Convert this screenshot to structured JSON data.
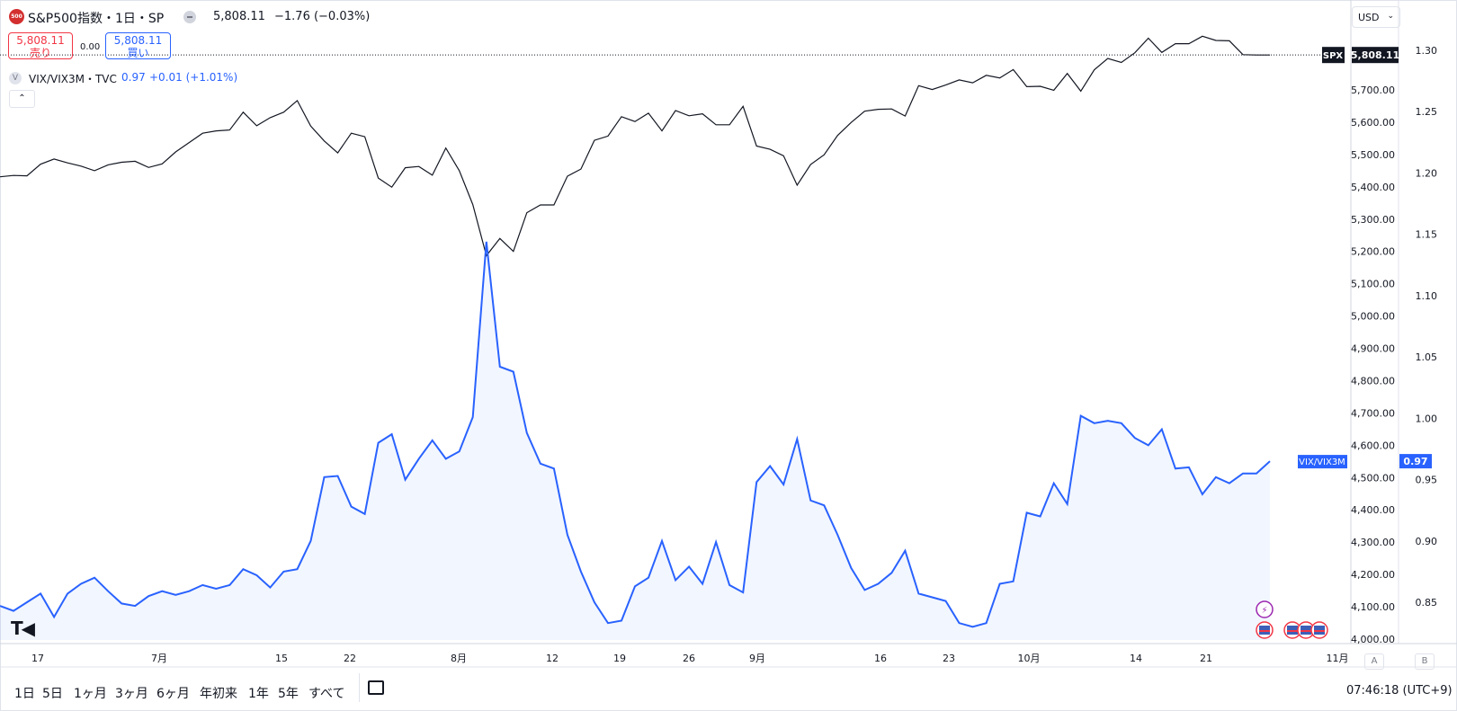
{
  "header": {
    "symbol_badge": "500",
    "title": "S&P500指数・1日・SP",
    "last": "5,808.11",
    "change": "−1.76 (−0.03%)"
  },
  "trade": {
    "sell_price": "5,808.11",
    "sell_label": "売り",
    "spread": "0.00",
    "buy_price": "5,808.11",
    "buy_label": "買い"
  },
  "overlay": {
    "label": "VIX/VIX3M・TVC",
    "value": "0.97",
    "change": "+0.01 (+1.01%)"
  },
  "currency": "USD",
  "chart_data": {
    "type": "line",
    "x_labels": [
      "17",
      "7月",
      "15",
      "22",
      "8月",
      "12",
      "19",
      "26",
      "9月",
      "16",
      "23",
      "10月",
      "14",
      "21",
      "11月"
    ],
    "left_axis_ticks": [
      "1.30",
      "1.25",
      "1.20",
      "1.15",
      "1.10",
      "1.05",
      "1.00",
      "0.95",
      "0.90",
      "0.85"
    ],
    "right_axis_ticks": [
      "5,700.00",
      "5,600.00",
      "5,500.00",
      "5,400.00",
      "5,300.00",
      "5,200.00",
      "5,100.00",
      "5,000.00",
      "4,900.00",
      "4,800.00",
      "4,700.00",
      "4,600.00",
      "4,500.00",
      "4,400.00",
      "4,300.00",
      "4,200.00",
      "4,100.00",
      "4,000.00"
    ],
    "series": [
      {
        "name": "SPX",
        "color": "#131722",
        "last_label": "5,808.11",
        "values": [
          5431,
          5435,
          5434,
          5470,
          5486,
          5474,
          5464,
          5450,
          5468,
          5476,
          5479,
          5460,
          5471,
          5508,
          5537,
          5566,
          5573,
          5576,
          5631,
          5589,
          5614,
          5631,
          5667,
          5588,
          5542,
          5505,
          5566,
          5555,
          5427,
          5399,
          5459,
          5463,
          5436,
          5520,
          5450,
          5345,
          5187,
          5240,
          5200,
          5320,
          5344,
          5344,
          5433,
          5455,
          5544,
          5557,
          5617,
          5602,
          5628,
          5573,
          5636,
          5620,
          5626,
          5592,
          5592,
          5649,
          5526,
          5516,
          5496,
          5405,
          5469,
          5499,
          5559,
          5599,
          5634,
          5640,
          5641,
          5619,
          5713,
          5701,
          5715,
          5731,
          5722,
          5745,
          5737,
          5763,
          5710,
          5711,
          5699,
          5751,
          5696,
          5762,
          5797,
          5785,
          5815,
          5860,
          5816,
          5843,
          5843,
          5866,
          5853,
          5852,
          5809,
          5808,
          5808
        ]
      },
      {
        "name": "VIX/VIX3M",
        "color": "#2962ff",
        "last_label": "0.97",
        "values": [
          0.847,
          0.843,
          0.85,
          0.857,
          0.838,
          0.857,
          0.865,
          0.87,
          0.859,
          0.849,
          0.847,
          0.855,
          0.859,
          0.856,
          0.859,
          0.864,
          0.861,
          0.864,
          0.877,
          0.872,
          0.862,
          0.875,
          0.877,
          0.9,
          0.952,
          0.953,
          0.928,
          0.922,
          0.98,
          0.987,
          0.95,
          0.967,
          0.982,
          0.967,
          0.973,
          1.001,
          1.144,
          1.042,
          1.038,
          0.988,
          0.963,
          0.959,
          0.905,
          0.875,
          0.85,
          0.833,
          0.835,
          0.863,
          0.87,
          0.9,
          0.868,
          0.879,
          0.865,
          0.899,
          0.864,
          0.858,
          0.948,
          0.961,
          0.946,
          0.983,
          0.933,
          0.929,
          0.905,
          0.878,
          0.86,
          0.865,
          0.874,
          0.892,
          0.857,
          0.854,
          0.851,
          0.833,
          0.83,
          0.833,
          0.865,
          0.867,
          0.923,
          0.92,
          0.947,
          0.93,
          1.002,
          0.996,
          0.998,
          0.996,
          0.984,
          0.978,
          0.991,
          0.959,
          0.96,
          0.938,
          0.952,
          0.947,
          0.955,
          0.955,
          0.965
        ]
      }
    ],
    "grid": false,
    "legend": "top-left"
  },
  "range_buttons": [
    "1日",
    "5日",
    "1ヶ月",
    "3ヶ月",
    "6ヶ月",
    "年初来",
    "1年",
    "5年",
    "すべて"
  ],
  "clock": "07:46:18 (UTC+9)",
  "scale_buttons": {
    "a": "A",
    "b": "B"
  }
}
